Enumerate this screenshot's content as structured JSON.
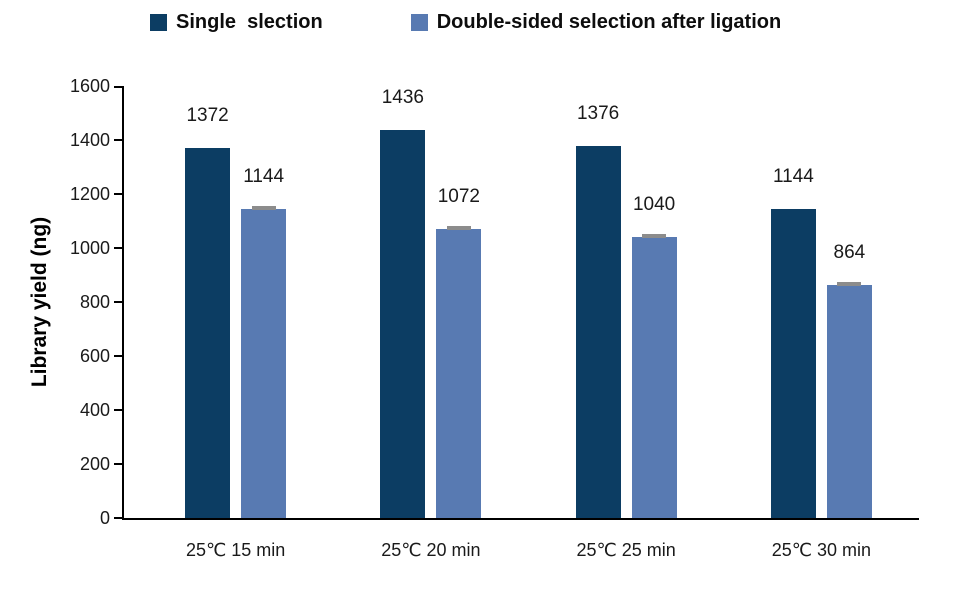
{
  "legend": {
    "items": [
      {
        "label": "Single  slection",
        "color": "#0C3D63"
      },
      {
        "label": "Double-sided selection after ligation",
        "color": "#587AB2"
      }
    ]
  },
  "chart_data": {
    "type": "bar",
    "title": "",
    "categories": [
      "25℃ 15 min",
      "25℃ 20 min",
      "25℃ 25 min",
      "25℃ 30 min"
    ],
    "series": [
      {
        "name": "Single  slection",
        "color": "#0C3D63",
        "values": [
          1372,
          1436,
          1376,
          1144
        ],
        "error_caps": false
      },
      {
        "name": "Double-sided selection after ligation",
        "color": "#587AB2",
        "values": [
          1144,
          1072,
          1040,
          864
        ],
        "error_caps": true
      }
    ],
    "xlabel": "",
    "ylabel": "Library yield (ng)",
    "ylim": [
      0,
      1600
    ],
    "yticks": [
      0,
      200,
      400,
      600,
      800,
      1000,
      1200,
      1400,
      1600
    ],
    "grid": false,
    "legend_position": "top",
    "value_labels": true,
    "error_cap_color": "#8C8C8C",
    "axis_color": "#000000"
  }
}
